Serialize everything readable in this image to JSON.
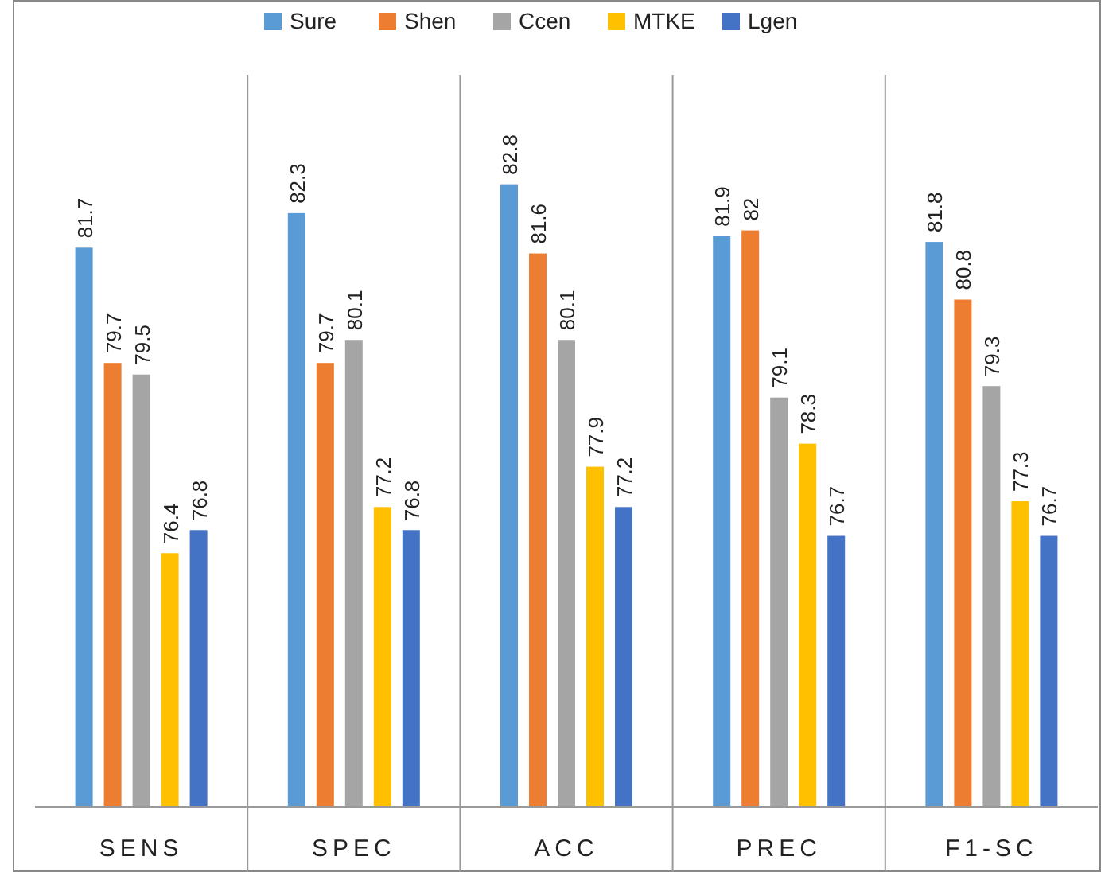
{
  "chart_data": {
    "type": "bar",
    "categories": [
      "SENS",
      "SPEC",
      "ACC",
      "PREC",
      "F1-SC"
    ],
    "series": [
      {
        "name": "Sure",
        "color": "#5b9bd5",
        "values": [
          81.7,
          82.3,
          82.8,
          81.9,
          81.8
        ]
      },
      {
        "name": "Shen",
        "color": "#ed7d31",
        "values": [
          79.7,
          79.7,
          81.6,
          82,
          80.8
        ]
      },
      {
        "name": "Ccen",
        "color": "#a5a5a5",
        "values": [
          79.5,
          80.1,
          80.1,
          79.1,
          79.3
        ]
      },
      {
        "name": "MTKE",
        "color": "#ffc000",
        "values": [
          76.4,
          77.2,
          77.9,
          78.3,
          77.3
        ]
      },
      {
        "name": "Lgen",
        "color": "#4472c4",
        "values": [
          76.8,
          76.8,
          77.2,
          76.7,
          76.7
        ]
      }
    ],
    "ylim": [
      72,
      84.7
    ],
    "tick_labels": "x",
    "data_labels": true,
    "grid": "x",
    "legend": "top"
  }
}
